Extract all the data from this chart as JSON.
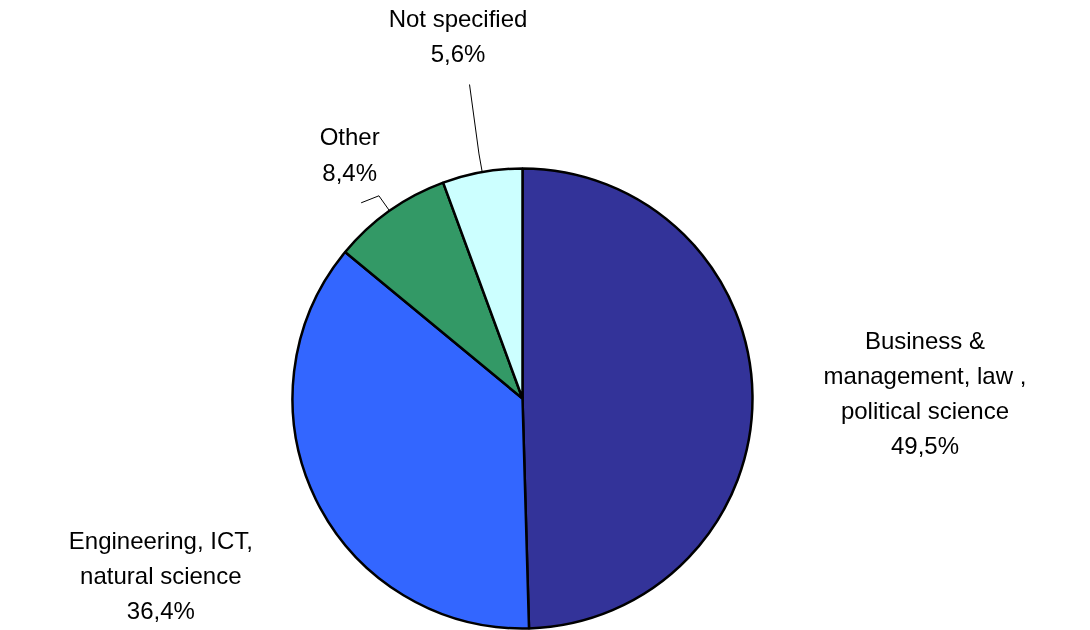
{
  "chart_data": {
    "type": "pie",
    "categories": [
      "Business &\nmanagement, law ,\npolitical science",
      "Engineering, ICT,\nnatural science",
      "Other",
      "Not specified"
    ],
    "values": [
      49.5,
      36.4,
      8.4,
      5.6
    ],
    "colors": [
      "#333399",
      "#3366ff",
      "#339966",
      "#ccffff"
    ],
    "value_labels": [
      "49,5%",
      "36,4%",
      "8,4%",
      "5,6%"
    ]
  }
}
